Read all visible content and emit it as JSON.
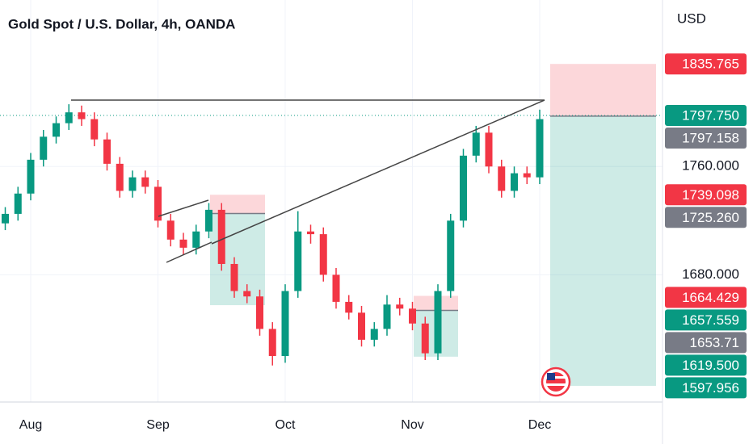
{
  "chart_data": {
    "type": "candlestick",
    "title": "Gold Spot / U.S. Dollar, 4h, OANDA",
    "currency": "USD",
    "categories": [
      null,
      null,
      "Aug",
      null,
      null,
      null,
      null,
      null,
      null,
      null,
      null,
      null,
      "Sep",
      null,
      null,
      null,
      null,
      null,
      null,
      null,
      null,
      null,
      "Oct",
      null,
      null,
      null,
      null,
      null,
      null,
      null,
      null,
      null,
      "Nov",
      null,
      null,
      null,
      null,
      null,
      null,
      null,
      null,
      null,
      "Dec"
    ],
    "open": [
      1718,
      1725,
      1740,
      1765,
      1782,
      1792,
      1800,
      1795,
      1780,
      1762,
      1742,
      1752,
      1745,
      1720,
      1706,
      1700,
      1712,
      1728,
      1688,
      1668,
      1664,
      1640,
      1620,
      1668,
      1712,
      1710,
      1680,
      1660,
      1652,
      1632,
      1640,
      1658,
      1655,
      1644,
      1622,
      1668,
      1720,
      1768,
      1785,
      1760,
      1742,
      1755,
      1752
    ],
    "high": [
      1730,
      1745,
      1770,
      1787,
      1797,
      1806,
      1805,
      1800,
      1785,
      1767,
      1757,
      1757,
      1750,
      1725,
      1711,
      1717,
      1733,
      1733,
      1693,
      1673,
      1669,
      1645,
      1673,
      1727,
      1717,
      1715,
      1685,
      1665,
      1657,
      1645,
      1665,
      1663,
      1660,
      1649,
      1673,
      1725,
      1773,
      1790,
      1790,
      1765,
      1760,
      1760,
      1802
    ],
    "low": [
      1713,
      1720,
      1735,
      1760,
      1777,
      1787,
      1790,
      1775,
      1757,
      1737,
      1737,
      1740,
      1715,
      1701,
      1695,
      1695,
      1707,
      1683,
      1663,
      1659,
      1635,
      1613,
      1615,
      1663,
      1703,
      1675,
      1655,
      1647,
      1627,
      1627,
      1635,
      1650,
      1639,
      1617,
      1617,
      1663,
      1715,
      1763,
      1755,
      1737,
      1737,
      1747,
      1747
    ],
    "close": [
      1725,
      1740,
      1765,
      1782,
      1792,
      1800,
      1795,
      1780,
      1762,
      1742,
      1752,
      1745,
      1720,
      1706,
      1700,
      1712,
      1728,
      1688,
      1668,
      1664,
      1640,
      1620,
      1668,
      1712,
      1710,
      1680,
      1660,
      1652,
      1632,
      1640,
      1658,
      1655,
      1644,
      1622,
      1668,
      1720,
      1768,
      1785,
      1760,
      1742,
      1755,
      1752,
      1795
    ],
    "up_color": "#089981",
    "down_color": "#f23645",
    "ylim": [
      1586,
      1883
    ],
    "yticks": [
      {
        "value": 1680,
        "label": "1680.000"
      },
      {
        "value": 1760,
        "label": "1760.000"
      }
    ],
    "grid": true,
    "current_price": {
      "value": 1797.75,
      "label": "1797.750"
    },
    "positions": [
      {
        "stop": 1739.098,
        "entry": {
          "value": 1725.26,
          "label": "1725.260"
        },
        "target": 1657.559
      },
      {
        "stop": 1664.429,
        "entry": 1653.71,
        "target": {
          "value": 1619.5,
          "label": "1619.500"
        }
      },
      {
        "stop": 1835.765,
        "entry": 1797.158,
        "target": 1597.956
      }
    ],
    "stop_color": "#f23645",
    "entry_color": "#787b86",
    "target_color": "#089981"
  }
}
